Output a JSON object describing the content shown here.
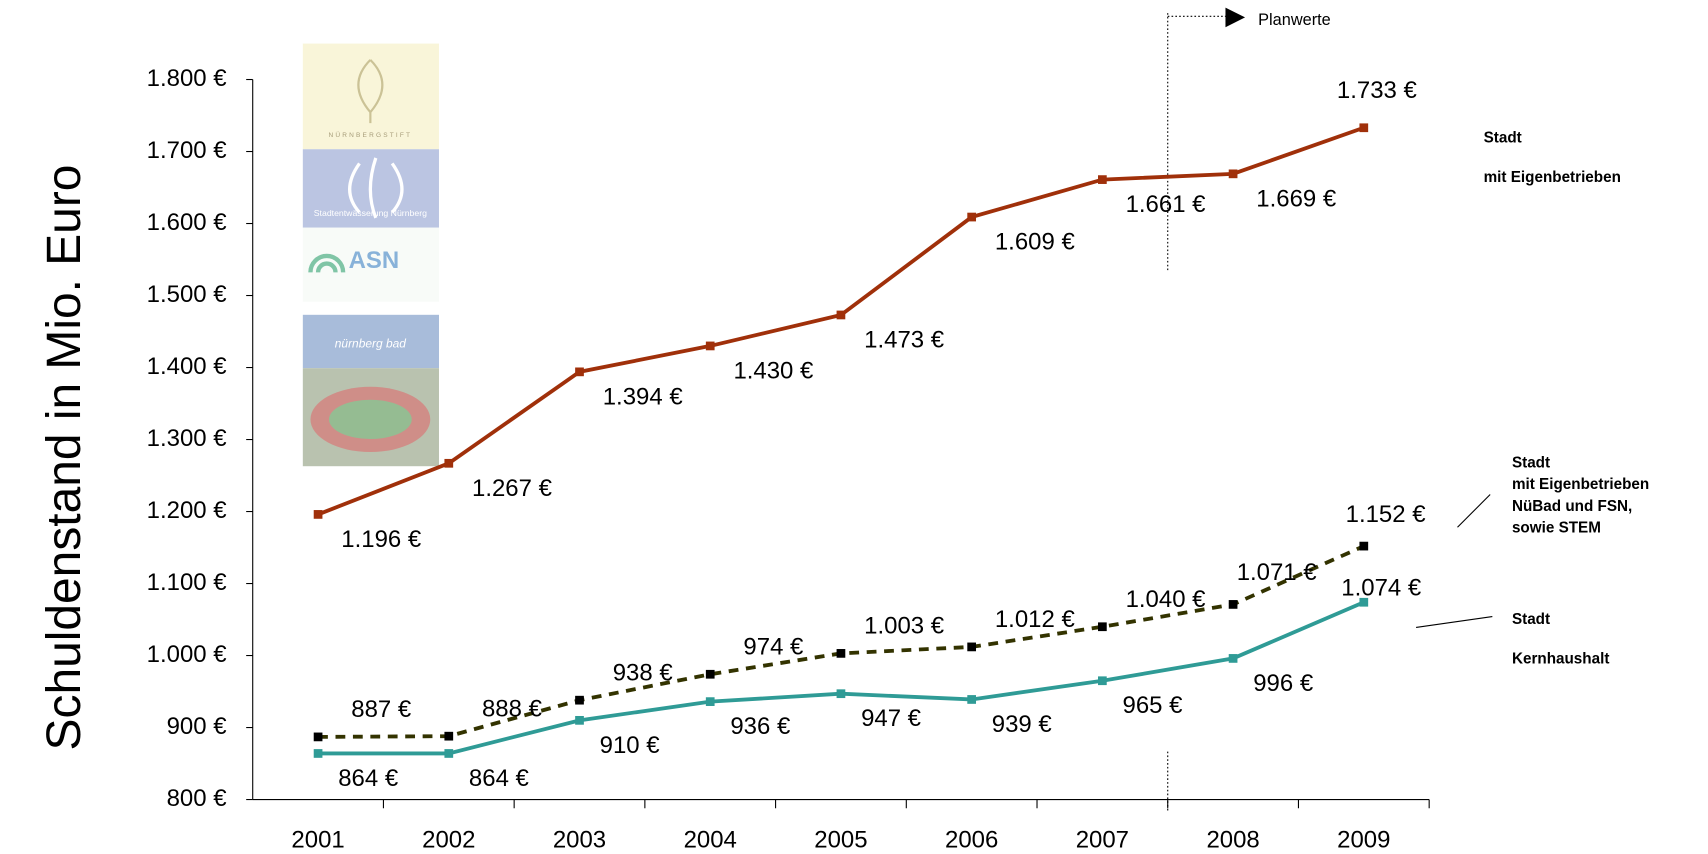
{
  "chart_data": {
    "type": "line",
    "y_label": "Schuldenstand in Mio. Euro",
    "categories": [
      "2001",
      "2002",
      "2003",
      "2004",
      "2005",
      "2006",
      "2007",
      "2008",
      "2009"
    ],
    "ylim": [
      800,
      1800
    ],
    "yticks": [
      {
        "value": 800,
        "label": "800 €"
      },
      {
        "value": 900,
        "label": "900 €"
      },
      {
        "value": 1000,
        "label": "1.000 €"
      },
      {
        "value": 1100,
        "label": "1.100 €"
      },
      {
        "value": 1200,
        "label": "1.200 €"
      },
      {
        "value": 1300,
        "label": "1.300 €"
      },
      {
        "value": 1400,
        "label": "1.400 €"
      },
      {
        "value": 1500,
        "label": "1.500 €"
      },
      {
        "value": 1600,
        "label": "1.600 €"
      },
      {
        "value": 1700,
        "label": "1.700 €"
      },
      {
        "value": 1800,
        "label": "1.800 €"
      }
    ],
    "series": [
      {
        "name": "Stadt\nmit Eigenbetrieben",
        "color": "#a0300a",
        "dashed": false,
        "values": [
          1196,
          1267,
          1394,
          1430,
          1473,
          1609,
          1661,
          1669,
          1733
        ],
        "value_labels": [
          "1.196 €",
          "1.267 €",
          "1.394 €",
          "1.430 €",
          "1.473 €",
          "1.609 €",
          "1.661 €",
          "1.669 €",
          "1.733 €"
        ]
      },
      {
        "name": "Stadt\nmit Eigenbetrieben\nNüBad und FSN,\nsowie STEM",
        "color": "#333300",
        "dashed": true,
        "values": [
          887,
          888,
          938,
          974,
          1003,
          1012,
          1040,
          1071,
          1152
        ],
        "value_labels": [
          "887 €",
          "888 €",
          "938 €",
          "974 €",
          "1.003 €",
          "1.012 €",
          "1.040 €",
          "1.071 €",
          "1.152 €"
        ]
      },
      {
        "name": "Stadt\nKernhaushalt",
        "color": "#2f9b96",
        "dashed": false,
        "values": [
          864,
          864,
          910,
          936,
          947,
          939,
          965,
          996,
          1074
        ],
        "value_labels": [
          "864 €",
          "864 €",
          "910 €",
          "936 €",
          "947 €",
          "939 €",
          "965 €",
          "996 €",
          "1.074 €"
        ]
      }
    ],
    "annotation": "Planwerte",
    "logos": [
      "NÜRNBERGSTIFT",
      "Stadtentwässerung Nürnberg",
      "ASN",
      "nürnberg bad"
    ]
  }
}
